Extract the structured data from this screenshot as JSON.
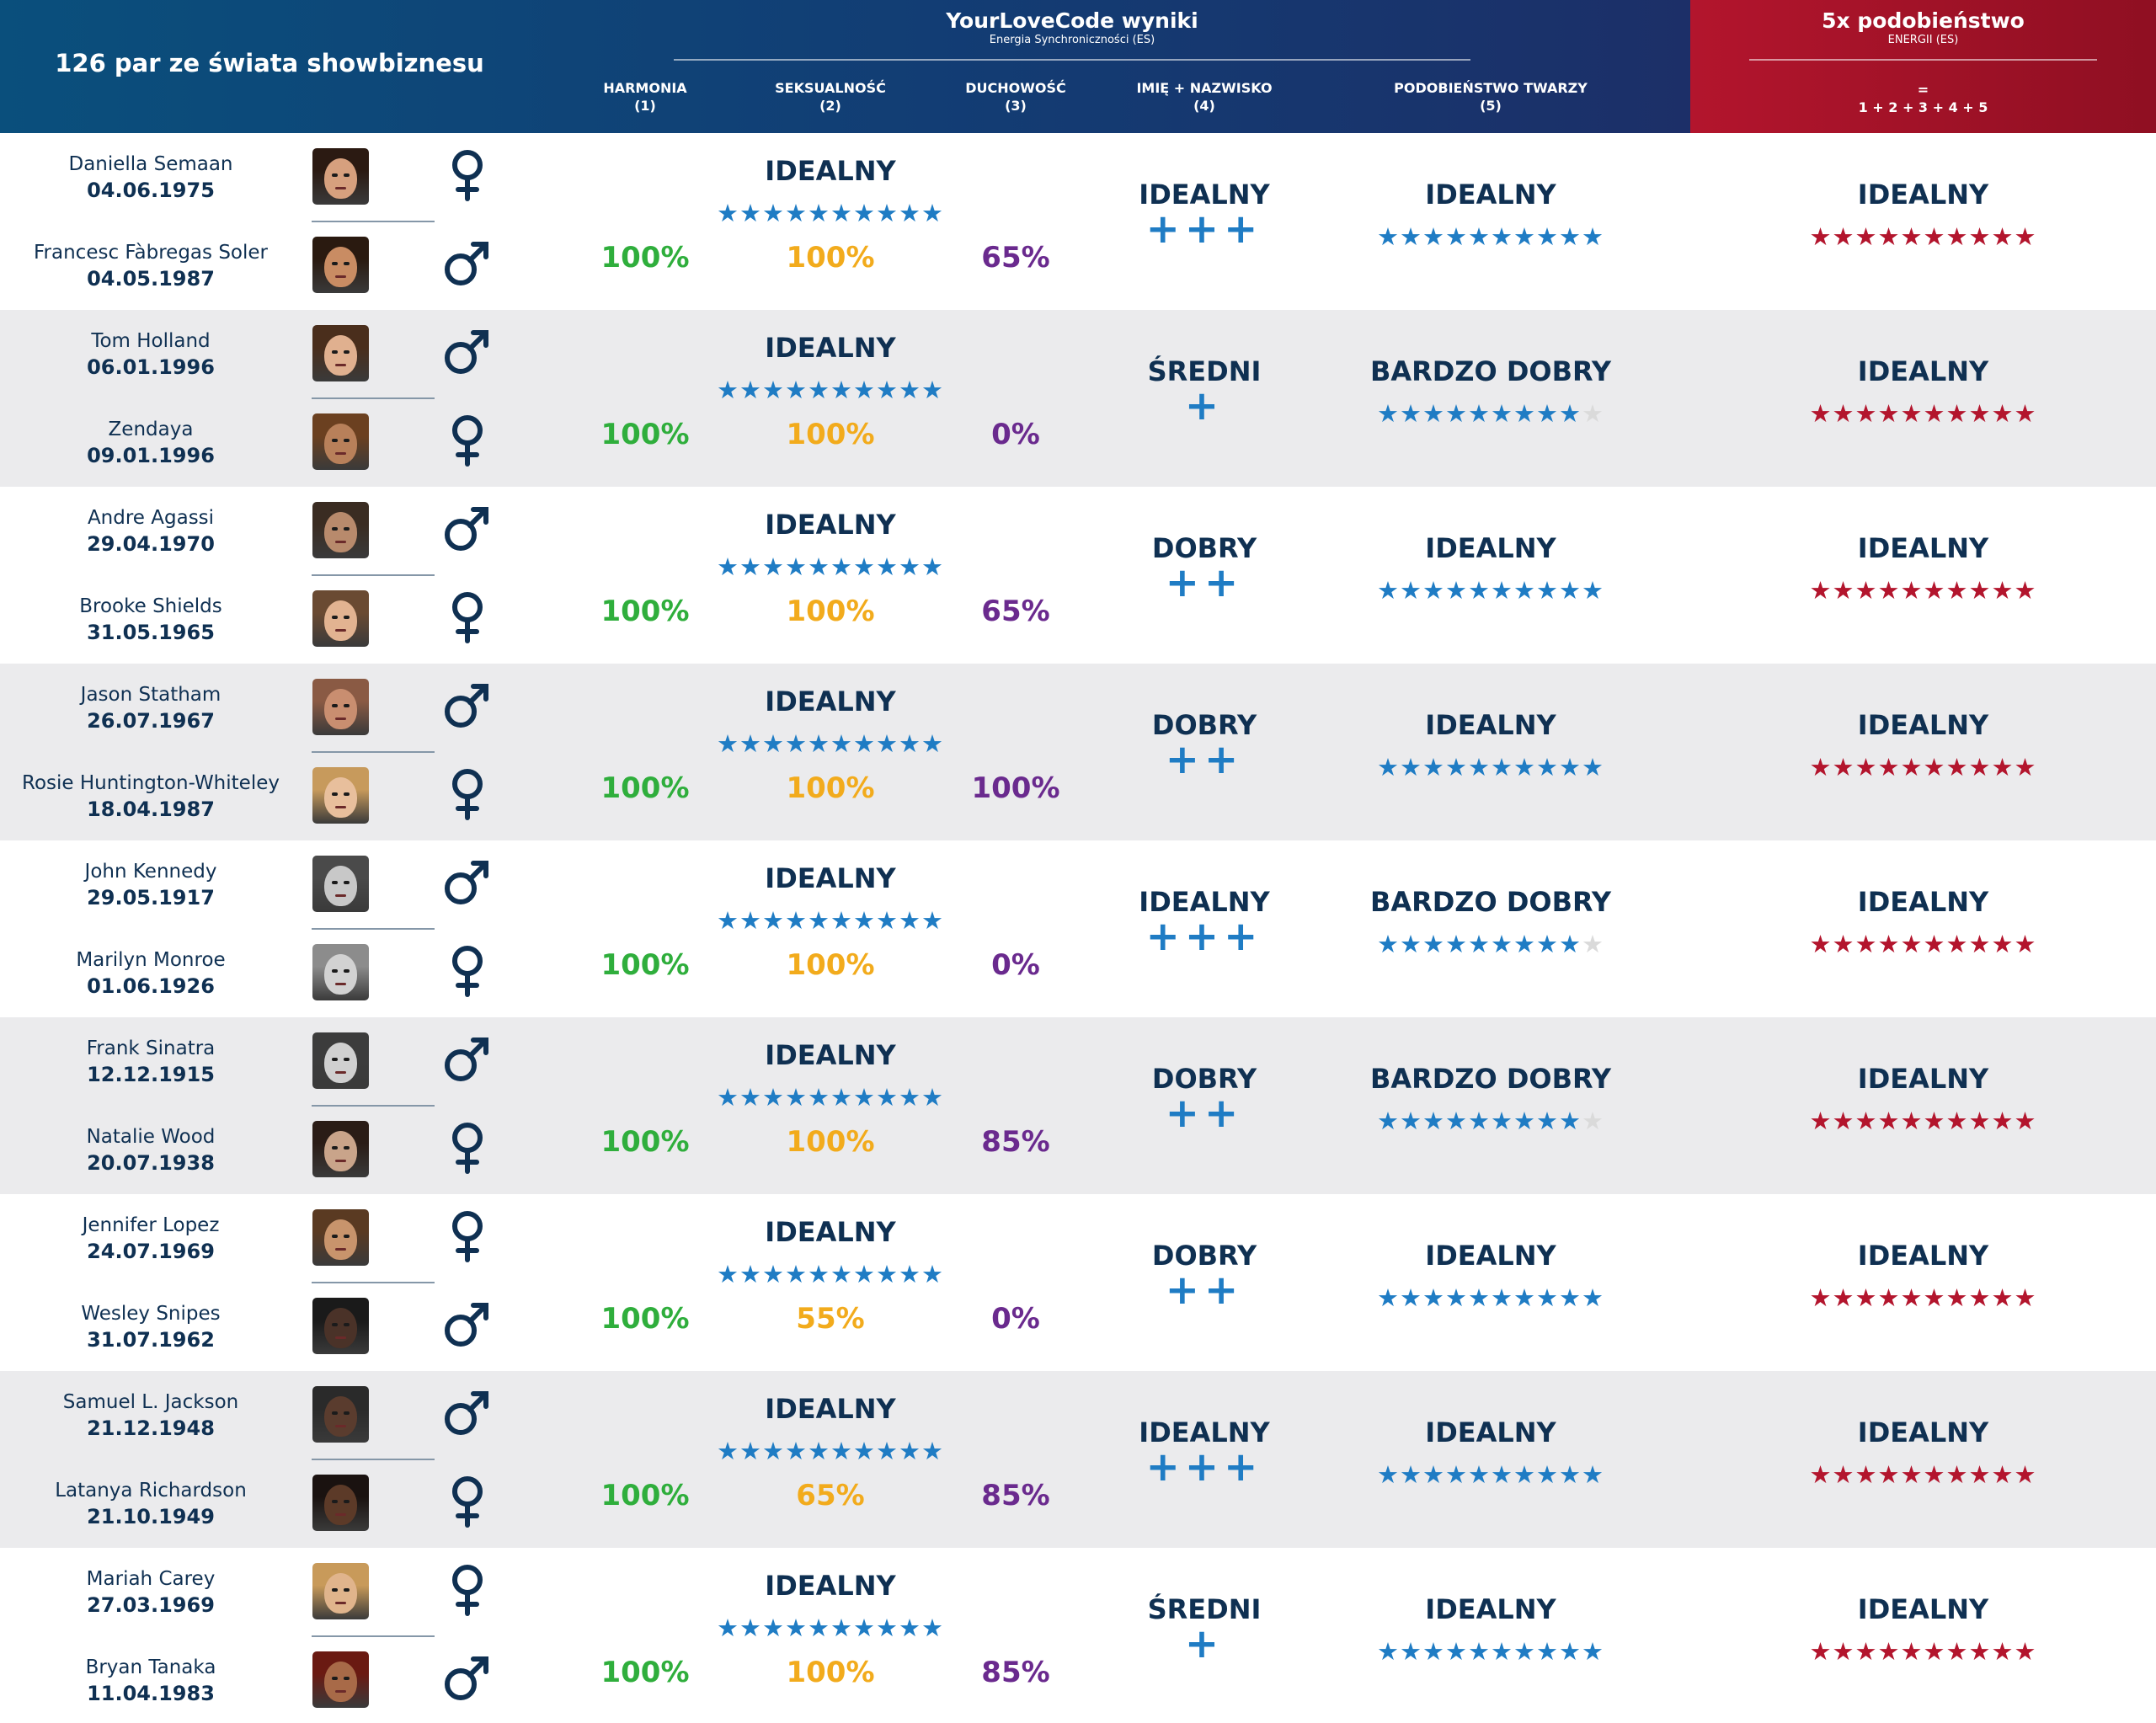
{
  "header": {
    "left_title": "126 par ze świata showbiznesu",
    "main_title": "YourLoveCode wyniki",
    "main_subtitle": "Energia Synchroniczności (ES)",
    "columns": [
      {
        "label": "HARMONIA",
        "num": "(1)"
      },
      {
        "label": "SEKSUALNOŚĆ",
        "num": "(2)"
      },
      {
        "label": "DUCHOWOŚĆ",
        "num": "(3)"
      },
      {
        "label": "IMIĘ + NAZWISKO",
        "num": "(4)"
      },
      {
        "label": "PODOBIEŃSTWO TWARZY",
        "num": "(5)"
      }
    ],
    "red_title": "5x podobieństwo",
    "red_subtitle": "ENERGII (ES)",
    "red_eq": "=",
    "red_formula": "1 + 2 + 3 + 4 + 5"
  },
  "colors": {
    "harmonia": "#2fae3c",
    "seks": "#f2ab1c",
    "duch": "#6a2a8e",
    "blue_star": "#1f7cc4",
    "red_star": "#b3152d",
    "empty_star": "#dadada",
    "navy": "#0f3052"
  },
  "rows": [
    {
      "p1": {
        "name": "Daniella Semaan",
        "date": "04.06.1975",
        "gender": "female",
        "skin": "#d6a07e",
        "hair": "#2b1a12"
      },
      "p2": {
        "name": "Francesc Fàbregas Soler",
        "date": "04.05.1987",
        "gender": "male",
        "skin": "#c98c63",
        "hair": "#2a1a10"
      },
      "combined": "IDEALNY",
      "combined_stars": 10,
      "harmonia": "100%",
      "seks": "100%",
      "duch": "65%",
      "name_label": "IDEALNY",
      "name_plus": "+++",
      "face_label": "IDEALNY",
      "face_stars": 10,
      "total_label": "IDEALNY",
      "total_stars": 10
    },
    {
      "p1": {
        "name": "Tom Holland",
        "date": "06.01.1996",
        "gender": "male",
        "skin": "#e0b08f",
        "hair": "#4a2e1c"
      },
      "p2": {
        "name": "Zendaya",
        "date": "09.01.1996",
        "gender": "female",
        "skin": "#b8805a",
        "hair": "#6b4020"
      },
      "combined": "IDEALNY",
      "combined_stars": 10,
      "harmonia": "100%",
      "seks": "100%",
      "duch": "0%",
      "name_label": "ŚREDNI",
      "name_plus": "+",
      "face_label": "BARDZO DOBRY",
      "face_stars": 9,
      "total_label": "IDEALNY",
      "total_stars": 10
    },
    {
      "p1": {
        "name": "Andre Agassi",
        "date": "29.04.1970",
        "gender": "male",
        "skin": "#b88a6c",
        "hair": "#3a2c22"
      },
      "p2": {
        "name": "Brooke Shields",
        "date": "31.05.1965",
        "gender": "female",
        "skin": "#e2b391",
        "hair": "#6a4a32"
      },
      "combined": "IDEALNY",
      "combined_stars": 10,
      "harmonia": "100%",
      "seks": "100%",
      "duch": "65%",
      "name_label": "DOBRY",
      "name_plus": "++",
      "face_label": "IDEALNY",
      "face_stars": 10,
      "total_label": "IDEALNY",
      "total_stars": 10
    },
    {
      "p1": {
        "name": "Jason Statham",
        "date": "26.07.1967",
        "gender": "male",
        "skin": "#c98e70",
        "hair": "#8a5a44"
      },
      "p2": {
        "name": "Rosie Huntington-Whiteley",
        "date": "18.04.1987",
        "gender": "female",
        "skin": "#e8bf9c",
        "hair": "#c79a5c"
      },
      "combined": "IDEALNY",
      "combined_stars": 10,
      "harmonia": "100%",
      "seks": "100%",
      "duch": "100%",
      "name_label": "DOBRY",
      "name_plus": "++",
      "face_label": "IDEALNY",
      "face_stars": 10,
      "total_label": "IDEALNY",
      "total_stars": 10
    },
    {
      "p1": {
        "name": "John Kennedy",
        "date": "29.05.1917",
        "gender": "male",
        "skin": "#c8c8c8",
        "hair": "#4a4a4a"
      },
      "p2": {
        "name": "Marilyn Monroe",
        "date": "01.06.1926",
        "gender": "female",
        "skin": "#d2d2d2",
        "hair": "#8c8c8c"
      },
      "combined": "IDEALNY",
      "combined_stars": 10,
      "harmonia": "100%",
      "seks": "100%",
      "duch": "0%",
      "name_label": "IDEALNY",
      "name_plus": "+++",
      "face_label": "BARDZO DOBRY",
      "face_stars": 9,
      "total_label": "IDEALNY",
      "total_stars": 10
    },
    {
      "p1": {
        "name": "Frank Sinatra",
        "date": "12.12.1915",
        "gender": "male",
        "skin": "#d0d0d0",
        "hair": "#3c3c3c"
      },
      "p2": {
        "name": "Natalie Wood",
        "date": "20.07.1938",
        "gender": "female",
        "skin": "#c9a48a",
        "hair": "#2a1c16"
      },
      "combined": "IDEALNY",
      "combined_stars": 10,
      "harmonia": "100%",
      "seks": "100%",
      "duch": "85%",
      "name_label": "DOBRY",
      "name_plus": "++",
      "face_label": "BARDZO DOBRY",
      "face_stars": 9,
      "total_label": "IDEALNY",
      "total_stars": 10
    },
    {
      "p1": {
        "name": "Jennifer Lopez",
        "date": "24.07.1969",
        "gender": "female",
        "skin": "#c8946c",
        "hair": "#5a3a22"
      },
      "p2": {
        "name": "Wesley Snipes",
        "date": "31.07.1962",
        "gender": "male",
        "skin": "#4a3228",
        "hair": "#1a1a1a"
      },
      "combined": "IDEALNY",
      "combined_stars": 10,
      "harmonia": "100%",
      "seks": "55%",
      "duch": "0%",
      "name_label": "DOBRY",
      "name_plus": "++",
      "face_label": "IDEALNY",
      "face_stars": 10,
      "total_label": "IDEALNY",
      "total_stars": 10
    },
    {
      "p1": {
        "name": "Samuel L. Jackson",
        "date": "21.12.1948",
        "gender": "male",
        "skin": "#5a3c2e",
        "hair": "#2a2a2a"
      },
      "p2": {
        "name": "Latanya Richardson",
        "date": "21.10.1949",
        "gender": "female",
        "skin": "#5c3a28",
        "hair": "#1a1210"
      },
      "combined": "IDEALNY",
      "combined_stars": 10,
      "harmonia": "100%",
      "seks": "65%",
      "duch": "85%",
      "name_label": "IDEALNY",
      "name_plus": "+++",
      "face_label": "IDEALNY",
      "face_stars": 10,
      "total_label": "IDEALNY",
      "total_stars": 10
    },
    {
      "p1": {
        "name": "Mariah Carey",
        "date": "27.03.1969",
        "gender": "female",
        "skin": "#e0b48c",
        "hair": "#c89a5a"
      },
      "p2": {
        "name": "Bryan Tanaka",
        "date": "11.04.1983",
        "gender": "male",
        "skin": "#a86a48",
        "hair": "#6a1a12"
      },
      "combined": "IDEALNY",
      "combined_stars": 10,
      "harmonia": "100%",
      "seks": "100%",
      "duch": "85%",
      "name_label": "ŚREDNI",
      "name_plus": "+",
      "face_label": "IDEALNY",
      "face_stars": 10,
      "total_label": "IDEALNY",
      "total_stars": 10
    }
  ]
}
